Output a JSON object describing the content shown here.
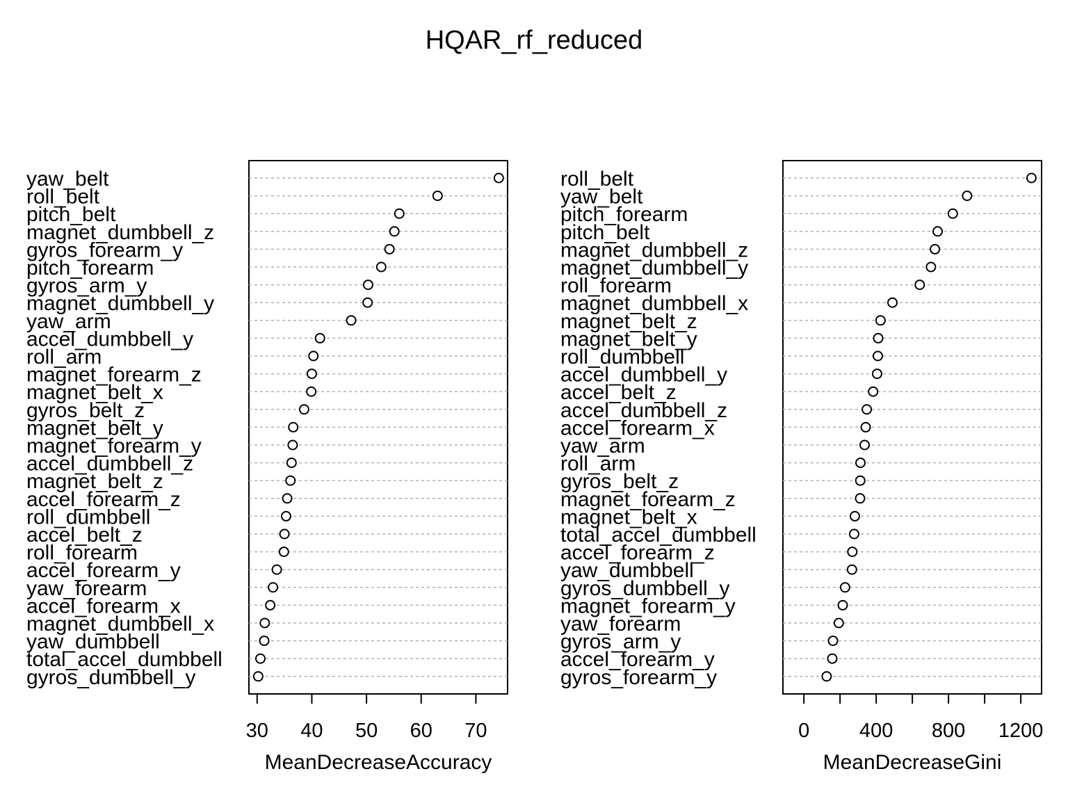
{
  "title": "HQAR_rf_reduced",
  "chart_data": [
    {
      "type": "scatter",
      "subtype": "dotchart",
      "xlabel": "MeanDecreaseAccuracy",
      "xlim": [
        28.5,
        75.8
      ],
      "xticks": [
        30,
        40,
        50,
        60,
        70
      ],
      "grid": "dashed horizontal guide lines",
      "items": [
        {
          "label": "yaw_belt",
          "value": 74.2
        },
        {
          "label": "roll_belt",
          "value": 63.0
        },
        {
          "label": "pitch_belt",
          "value": 56.0
        },
        {
          "label": "magnet_dumbbell_z",
          "value": 55.1
        },
        {
          "label": "gyros_forearm_y",
          "value": 54.2
        },
        {
          "label": "pitch_forearm",
          "value": 52.7
        },
        {
          "label": "gyros_arm_y",
          "value": 50.3
        },
        {
          "label": "magnet_dumbbell_y",
          "value": 50.2
        },
        {
          "label": "yaw_arm",
          "value": 47.2
        },
        {
          "label": "accel_dumbbell_y",
          "value": 41.5
        },
        {
          "label": "roll_arm",
          "value": 40.3
        },
        {
          "label": "magnet_forearm_z",
          "value": 40.0
        },
        {
          "label": "magnet_belt_x",
          "value": 39.9
        },
        {
          "label": "gyros_belt_z",
          "value": 38.6
        },
        {
          "label": "magnet_belt_y",
          "value": 36.6
        },
        {
          "label": "magnet_forearm_y",
          "value": 36.5
        },
        {
          "label": "accel_dumbbell_z",
          "value": 36.3
        },
        {
          "label": "magnet_belt_z",
          "value": 36.1
        },
        {
          "label": "accel_forearm_z",
          "value": 35.5
        },
        {
          "label": "roll_dumbbell",
          "value": 35.3
        },
        {
          "label": "accel_belt_z",
          "value": 35.0
        },
        {
          "label": "roll_forearm",
          "value": 34.9
        },
        {
          "label": "accel_forearm_y",
          "value": 33.6
        },
        {
          "label": "yaw_forearm",
          "value": 32.9
        },
        {
          "label": "accel_forearm_x",
          "value": 32.4
        },
        {
          "label": "magnet_dumbbell_x",
          "value": 31.4
        },
        {
          "label": "yaw_dumbbell",
          "value": 31.3
        },
        {
          "label": "total_accel_dumbbell",
          "value": 30.6
        },
        {
          "label": "gyros_dumbbell_y",
          "value": 30.2
        }
      ]
    },
    {
      "type": "scatter",
      "subtype": "dotchart",
      "xlabel": "MeanDecreaseGini",
      "xlim": [
        -116,
        1315
      ],
      "xticks": [
        0,
        200,
        400,
        600,
        800,
        1000,
        1200
      ],
      "xticklabels_shown": [
        0,
        400,
        800,
        1200
      ],
      "grid": "dashed horizontal guide lines",
      "items": [
        {
          "label": "roll_belt",
          "value": 1259
        },
        {
          "label": "yaw_belt",
          "value": 903
        },
        {
          "label": "pitch_forearm",
          "value": 824
        },
        {
          "label": "pitch_belt",
          "value": 740
        },
        {
          "label": "magnet_dumbbell_z",
          "value": 725
        },
        {
          "label": "magnet_dumbbell_y",
          "value": 703
        },
        {
          "label": "roll_forearm",
          "value": 641
        },
        {
          "label": "magnet_dumbbell_x",
          "value": 490
        },
        {
          "label": "magnet_belt_z",
          "value": 424
        },
        {
          "label": "magnet_belt_y",
          "value": 411
        },
        {
          "label": "roll_dumbbell",
          "value": 409
        },
        {
          "label": "accel_dumbbell_y",
          "value": 405
        },
        {
          "label": "accel_belt_z",
          "value": 383
        },
        {
          "label": "accel_dumbbell_z",
          "value": 348
        },
        {
          "label": "accel_forearm_x",
          "value": 342
        },
        {
          "label": "yaw_arm",
          "value": 336
        },
        {
          "label": "roll_arm",
          "value": 313
        },
        {
          "label": "gyros_belt_z",
          "value": 312
        },
        {
          "label": "magnet_forearm_z",
          "value": 311
        },
        {
          "label": "magnet_belt_x",
          "value": 282
        },
        {
          "label": "total_accel_dumbbell",
          "value": 278
        },
        {
          "label": "accel_forearm_z",
          "value": 268
        },
        {
          "label": "yaw_dumbbell",
          "value": 266
        },
        {
          "label": "gyros_dumbbell_y",
          "value": 228
        },
        {
          "label": "magnet_forearm_y",
          "value": 215
        },
        {
          "label": "yaw_forearm",
          "value": 193
        },
        {
          "label": "gyros_arm_y",
          "value": 161
        },
        {
          "label": "accel_forearm_y",
          "value": 157
        },
        {
          "label": "gyros_forearm_y",
          "value": 126
        }
      ]
    }
  ]
}
